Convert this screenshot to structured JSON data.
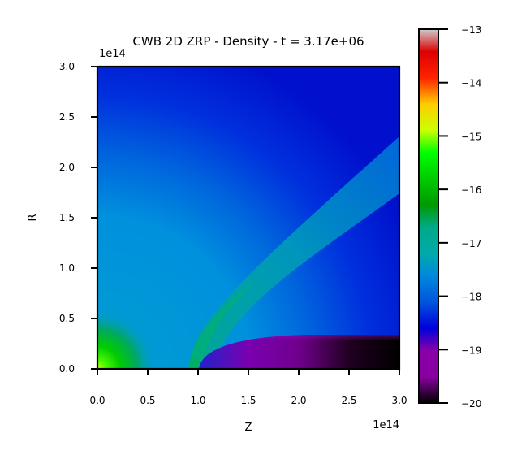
{
  "chart_data": {
    "type": "heatmap",
    "title": "CWB 2D ZRP - Density - t = 3.17e+06",
    "xlabel": "Z",
    "ylabel": "R",
    "x_offset_label": "1e14",
    "y_offset_label": "1e14",
    "xlim": [
      0.0,
      3.0
    ],
    "ylim": [
      0.0,
      3.0
    ],
    "x_ticks": [
      "0.0",
      "0.5",
      "1.0",
      "1.5",
      "2.0",
      "2.5",
      "3.0"
    ],
    "y_ticks": [
      "0.0",
      "0.5",
      "1.0",
      "1.5",
      "2.0",
      "2.5",
      "3.0"
    ],
    "colorbar": {
      "range": [
        -20,
        -13
      ],
      "ticks": [
        "−20",
        "−19",
        "−18",
        "−17",
        "−16",
        "−15",
        "−14",
        "−13"
      ],
      "colormap": "nipy_spectral",
      "stops": [
        "#000000",
        "#8800a0",
        "#0000dd",
        "#0088dd",
        "#00aa88",
        "#009900",
        "#00ff00",
        "#ccff00",
        "#ffcc00",
        "#ff0000",
        "#cc0000",
        "#cccccc"
      ]
    }
  }
}
